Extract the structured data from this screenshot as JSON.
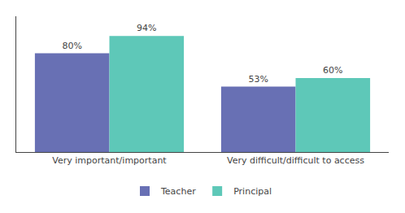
{
  "chart_data": {
    "type": "bar",
    "categories": [
      "Very important/important",
      "Very difficult/difficult to access"
    ],
    "series": [
      {
        "name": "Teacher",
        "color": "#6870b4",
        "values": [
          80,
          53
        ],
        "value_labels": [
          "80%",
          "53%"
        ]
      },
      {
        "name": "Principal",
        "color": "#5ec8b8",
        "values": [
          94,
          60
        ],
        "value_labels": [
          "94%",
          "60%"
        ]
      }
    ],
    "ylim": [
      0,
      110
    ],
    "grid": false,
    "legend": "bottom",
    "data_labels": true,
    "tick_labels": "x"
  }
}
